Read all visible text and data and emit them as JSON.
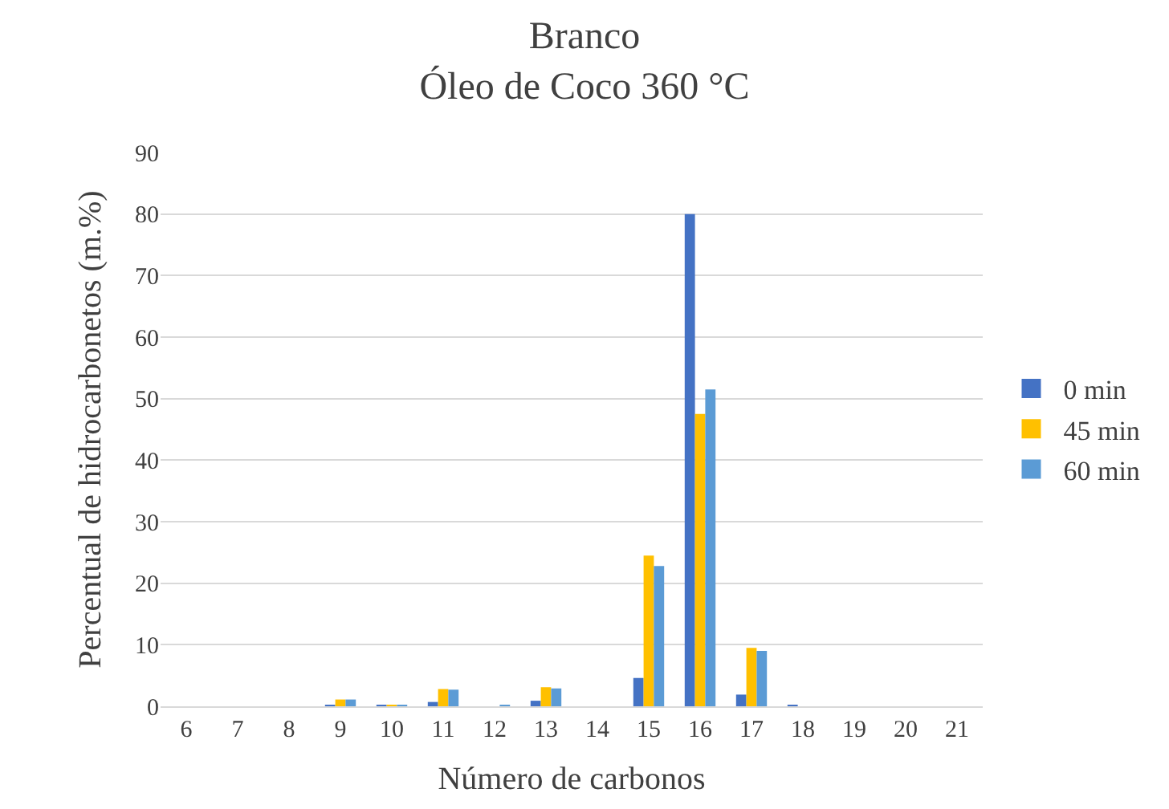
{
  "chart_data": {
    "type": "bar",
    "title": "Branco",
    "subtitle": "Óleo de Coco 360 °C",
    "xlabel": "Número de carbonos",
    "ylabel": "Percentual de hidrocarbonetos (m.%)",
    "categories": [
      "6",
      "7",
      "8",
      "9",
      "10",
      "11",
      "12",
      "13",
      "14",
      "15",
      "16",
      "17",
      "18",
      "19",
      "20",
      "21"
    ],
    "series": [
      {
        "name": "0 min",
        "color": "#4472c4",
        "values": [
          0,
          0,
          0,
          0.2,
          0.2,
          0.7,
          0,
          0.9,
          0,
          4.6,
          80,
          1.9,
          0.2,
          0,
          0,
          0
        ]
      },
      {
        "name": "45 min",
        "color": "#ffc000",
        "values": [
          0,
          0,
          0,
          1.1,
          0.2,
          2.8,
          0,
          3.1,
          0,
          24.5,
          47.5,
          9.5,
          0,
          0,
          0,
          0
        ]
      },
      {
        "name": "60 min",
        "color": "#5b9bd5",
        "values": [
          0,
          0,
          0,
          1.1,
          0.2,
          2.7,
          0.2,
          2.9,
          0,
          22.8,
          51.5,
          9.0,
          0,
          0,
          0,
          0
        ]
      }
    ],
    "ylim": [
      0,
      90
    ],
    "yticks": [
      0,
      10,
      20,
      30,
      40,
      50,
      60,
      70,
      80,
      90
    ],
    "grid": "y",
    "legend": "right"
  }
}
